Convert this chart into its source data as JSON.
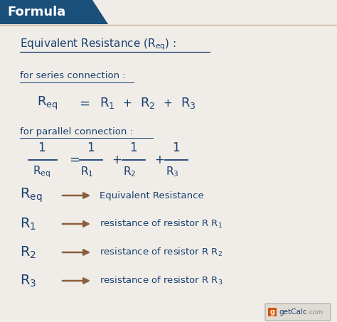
{
  "bg_color": "#e8e4dc",
  "header_bg": "#1a4f7a",
  "header_text": "Formula",
  "header_text_color": "#ffffff",
  "main_blue": "#1a4070",
  "arrow_color": "#8B5E3C",
  "series_label": "for series connection :",
  "parallel_label": "for parallel connection :",
  "legend_items": [
    {
      "sub": "eq",
      "desc": "Equivalent Resistance",
      "has_sub": false
    },
    {
      "sub": "1",
      "desc": "resistance of resistor R",
      "has_sub": true,
      "desc_sub": "1"
    },
    {
      "sub": "2",
      "desc": "resistance of resistor R",
      "has_sub": true,
      "desc_sub": "2"
    },
    {
      "sub": "3",
      "desc": "resistance of resistor R",
      "has_sub": true,
      "desc_sub": "3"
    }
  ],
  "watermark_text": "getCalc",
  "watermark_com": ".com",
  "card_color": "#f0ede8",
  "header_line_color": "#c8b89a"
}
